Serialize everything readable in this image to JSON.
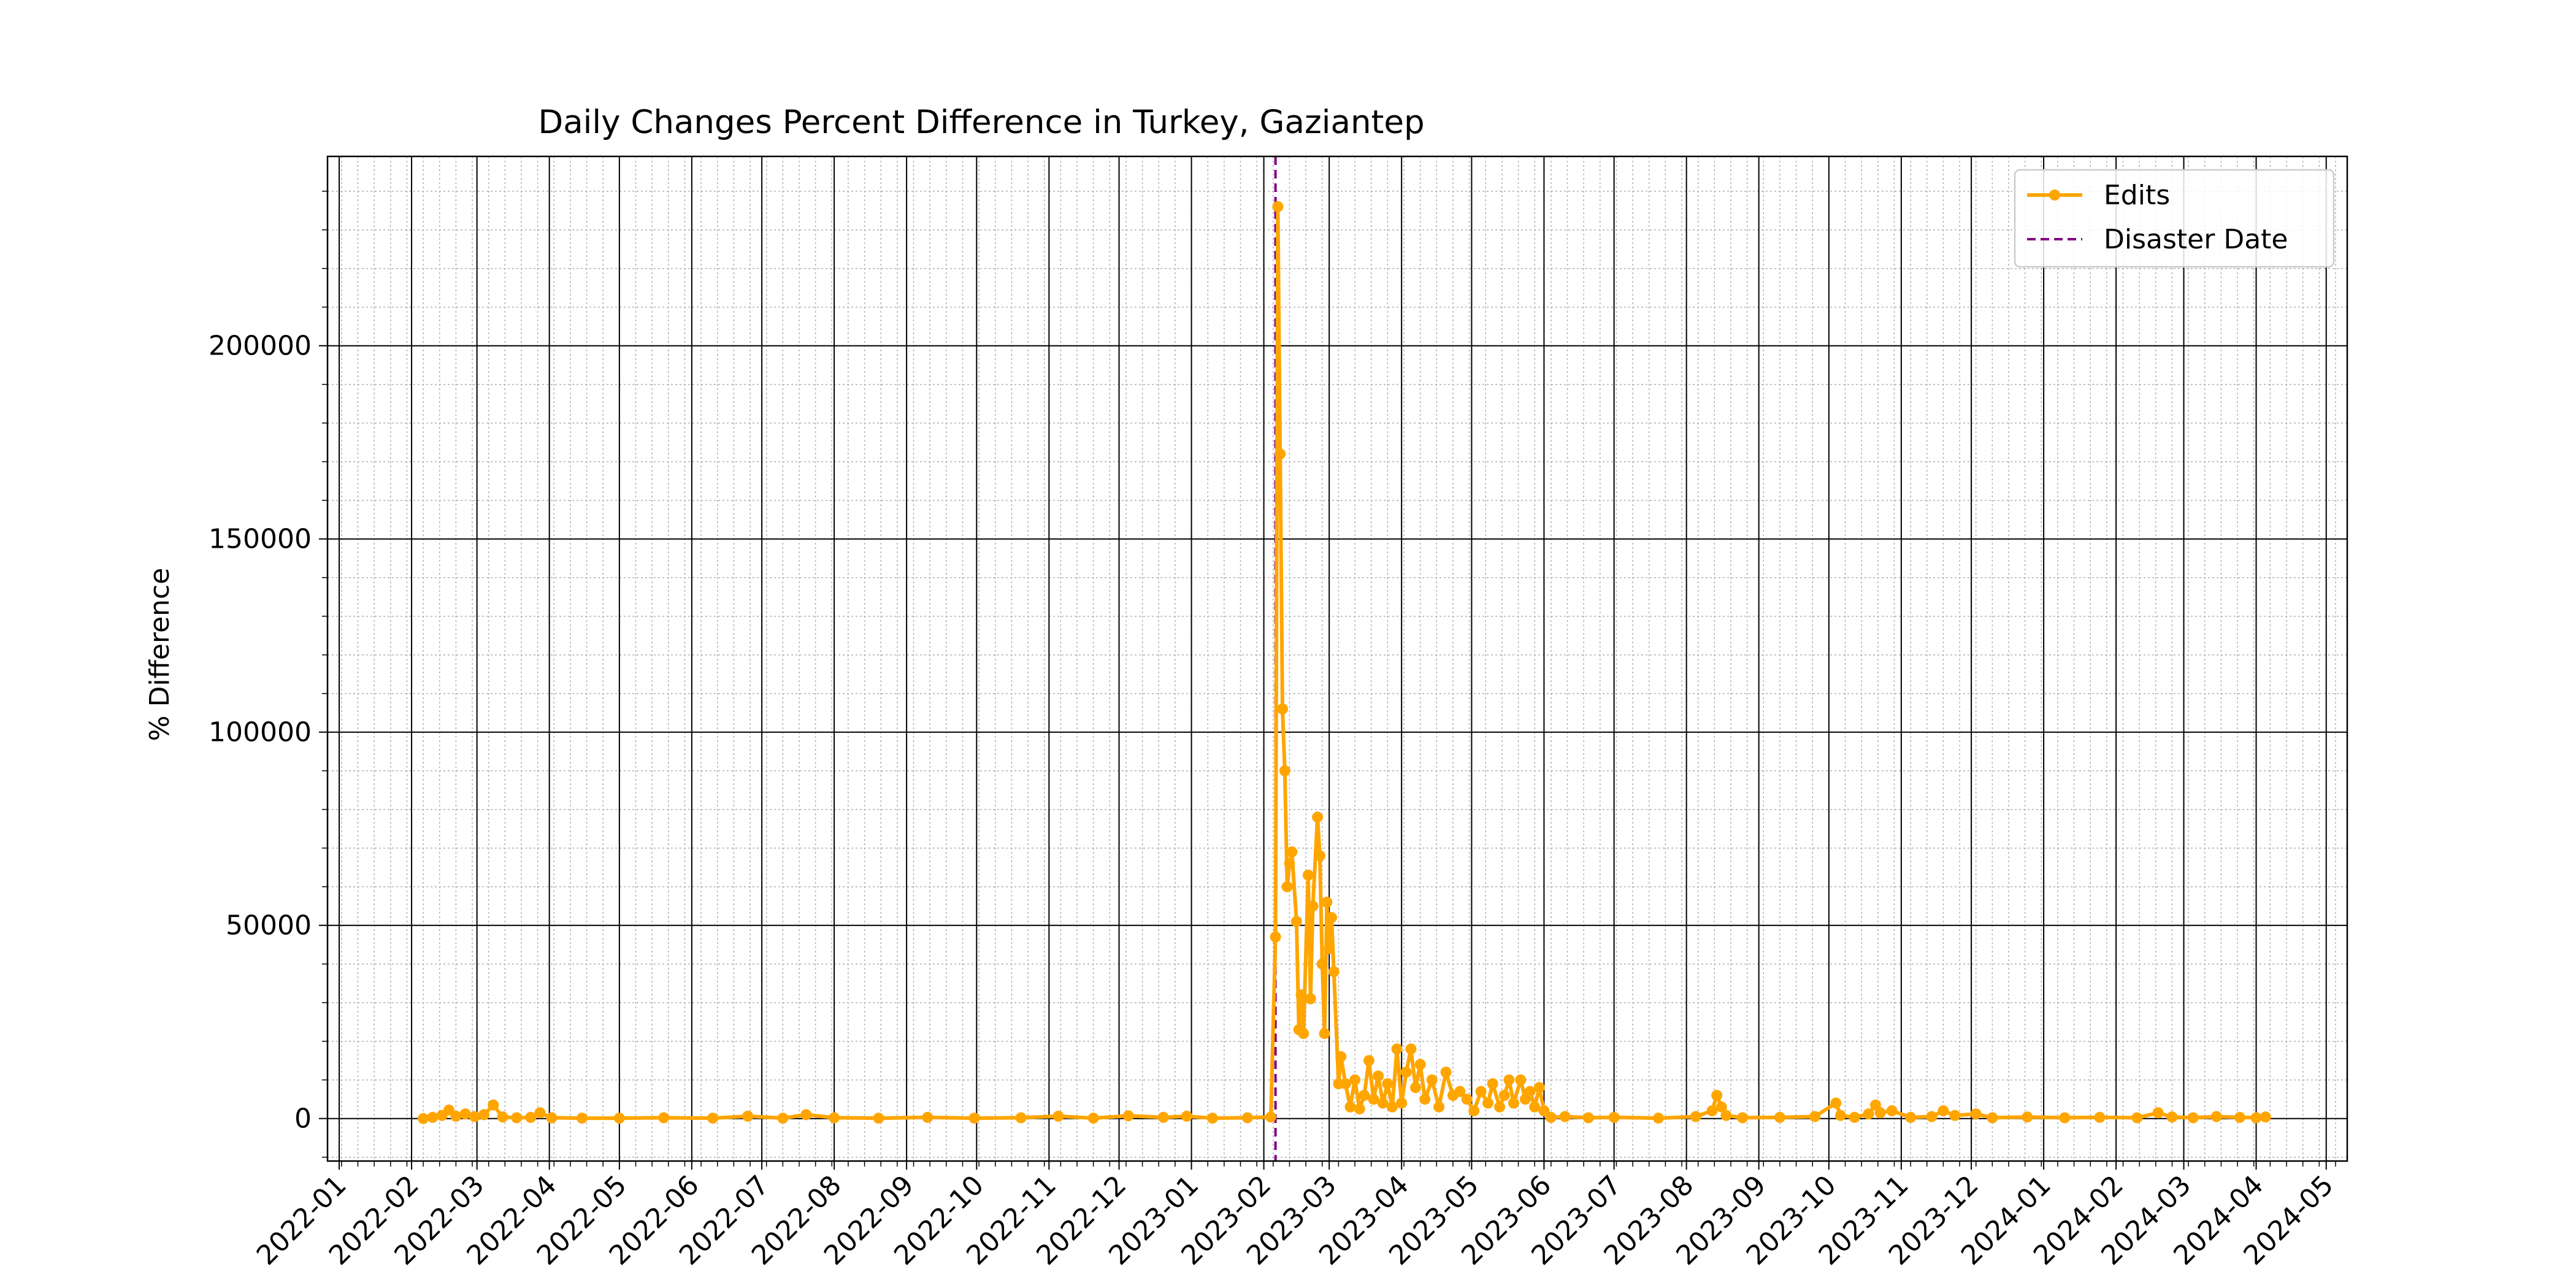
{
  "chart_data": {
    "type": "line",
    "title": "Daily Changes Percent Difference in Turkey, Gaziantep",
    "xlabel": "",
    "ylabel": "% Difference",
    "xlim": [
      "2021-12-27",
      "2024-05-10"
    ],
    "ylim": [
      -11000,
      249000
    ],
    "y_ticks": [
      0,
      50000,
      100000,
      150000,
      200000
    ],
    "y_tick_labels": [
      "0",
      "50000",
      "100000",
      "150000",
      "200000"
    ],
    "x_ticks": [
      "2022-01-01",
      "2022-02-01",
      "2022-03-01",
      "2022-04-01",
      "2022-05-01",
      "2022-06-01",
      "2022-07-01",
      "2022-08-01",
      "2022-09-01",
      "2022-10-01",
      "2022-11-01",
      "2022-12-01",
      "2023-01-01",
      "2023-02-01",
      "2023-03-01",
      "2023-04-01",
      "2023-05-01",
      "2023-06-01",
      "2023-07-01",
      "2023-08-01",
      "2023-09-01",
      "2023-10-01",
      "2023-11-01",
      "2023-12-01",
      "2024-01-01",
      "2024-02-01",
      "2024-03-01",
      "2024-04-01",
      "2024-05-01"
    ],
    "x_tick_labels": [
      "2022-01",
      "2022-02",
      "2022-03",
      "2022-04",
      "2022-05",
      "2022-06",
      "2022-07",
      "2022-08",
      "2022-09",
      "2022-10",
      "2022-11",
      "2022-12",
      "2023-01",
      "2023-02",
      "2023-03",
      "2023-04",
      "2023-05",
      "2023-06",
      "2023-07",
      "2023-08",
      "2023-09",
      "2023-10",
      "2023-11",
      "2023-12",
      "2024-01",
      "2024-02",
      "2024-03",
      "2024-04",
      "2024-05"
    ],
    "grid": true,
    "minor_grid": true,
    "legend_position": "top-right",
    "series": [
      {
        "name": "Edits",
        "color": "#FFA500",
        "marker": "circle",
        "points": [
          [
            "2022-02-06",
            0
          ],
          [
            "2022-02-10",
            300
          ],
          [
            "2022-02-14",
            800
          ],
          [
            "2022-02-17",
            2200
          ],
          [
            "2022-02-20",
            600
          ],
          [
            "2022-02-24",
            1200
          ],
          [
            "2022-02-28",
            500
          ],
          [
            "2022-03-04",
            1000
          ],
          [
            "2022-03-08",
            3500
          ],
          [
            "2022-03-12",
            400
          ],
          [
            "2022-03-18",
            200
          ],
          [
            "2022-03-24",
            300
          ],
          [
            "2022-03-28",
            1500
          ],
          [
            "2022-04-02",
            200
          ],
          [
            "2022-04-15",
            100
          ],
          [
            "2022-05-01",
            100
          ],
          [
            "2022-05-20",
            200
          ],
          [
            "2022-06-10",
            100
          ],
          [
            "2022-06-25",
            600
          ],
          [
            "2022-07-10",
            100
          ],
          [
            "2022-07-20",
            1000
          ],
          [
            "2022-08-01",
            200
          ],
          [
            "2022-08-20",
            100
          ],
          [
            "2022-09-10",
            300
          ],
          [
            "2022-09-30",
            100
          ],
          [
            "2022-10-20",
            200
          ],
          [
            "2022-11-05",
            600
          ],
          [
            "2022-11-20",
            100
          ],
          [
            "2022-12-05",
            700
          ],
          [
            "2022-12-20",
            300
          ],
          [
            "2022-12-30",
            600
          ],
          [
            "2023-01-10",
            100
          ],
          [
            "2023-01-25",
            200
          ],
          [
            "2023-02-04",
            400
          ],
          [
            "2023-02-06",
            47000
          ],
          [
            "2023-02-07",
            236000
          ],
          [
            "2023-02-08",
            172000
          ],
          [
            "2023-02-09",
            106000
          ],
          [
            "2023-02-10",
            90000
          ],
          [
            "2023-02-11",
            60000
          ],
          [
            "2023-02-12",
            66000
          ],
          [
            "2023-02-13",
            69000
          ],
          [
            "2023-02-15",
            51000
          ],
          [
            "2023-02-16",
            23000
          ],
          [
            "2023-02-17",
            32000
          ],
          [
            "2023-02-18",
            22000
          ],
          [
            "2023-02-20",
            63000
          ],
          [
            "2023-02-21",
            31000
          ],
          [
            "2023-02-22",
            55000
          ],
          [
            "2023-02-24",
            78000
          ],
          [
            "2023-02-25",
            68000
          ],
          [
            "2023-02-26",
            40000
          ],
          [
            "2023-02-27",
            22000
          ],
          [
            "2023-02-28",
            56000
          ],
          [
            "2023-03-01",
            44000
          ],
          [
            "2023-03-02",
            52000
          ],
          [
            "2023-03-03",
            38000
          ],
          [
            "2023-03-05",
            9000
          ],
          [
            "2023-03-06",
            16000
          ],
          [
            "2023-03-08",
            9000
          ],
          [
            "2023-03-10",
            3000
          ],
          [
            "2023-03-12",
            10000
          ],
          [
            "2023-03-14",
            2500
          ],
          [
            "2023-03-16",
            6000
          ],
          [
            "2023-03-18",
            15000
          ],
          [
            "2023-03-20",
            5000
          ],
          [
            "2023-03-22",
            11000
          ],
          [
            "2023-03-24",
            4000
          ],
          [
            "2023-03-26",
            9000
          ],
          [
            "2023-03-28",
            3000
          ],
          [
            "2023-03-30",
            18000
          ],
          [
            "2023-04-01",
            4000
          ],
          [
            "2023-04-03",
            12000
          ],
          [
            "2023-04-05",
            18000
          ],
          [
            "2023-04-07",
            8000
          ],
          [
            "2023-04-09",
            14000
          ],
          [
            "2023-04-11",
            5000
          ],
          [
            "2023-04-14",
            10000
          ],
          [
            "2023-04-17",
            3000
          ],
          [
            "2023-04-20",
            12000
          ],
          [
            "2023-04-23",
            6000
          ],
          [
            "2023-04-26",
            7000
          ],
          [
            "2023-04-29",
            5000
          ],
          [
            "2023-05-02",
            2000
          ],
          [
            "2023-05-05",
            7000
          ],
          [
            "2023-05-08",
            4000
          ],
          [
            "2023-05-10",
            9000
          ],
          [
            "2023-05-13",
            3000
          ],
          [
            "2023-05-15",
            6000
          ],
          [
            "2023-05-17",
            10000
          ],
          [
            "2023-05-19",
            4000
          ],
          [
            "2023-05-22",
            10000
          ],
          [
            "2023-05-24",
            5000
          ],
          [
            "2023-05-26",
            7000
          ],
          [
            "2023-05-28",
            3000
          ],
          [
            "2023-05-30",
            8000
          ],
          [
            "2023-06-01",
            2000
          ],
          [
            "2023-06-04",
            300
          ],
          [
            "2023-06-10",
            500
          ],
          [
            "2023-06-20",
            200
          ],
          [
            "2023-07-01",
            300
          ],
          [
            "2023-07-20",
            100
          ],
          [
            "2023-08-05",
            500
          ],
          [
            "2023-08-12",
            2000
          ],
          [
            "2023-08-14",
            6000
          ],
          [
            "2023-08-16",
            3000
          ],
          [
            "2023-08-18",
            800
          ],
          [
            "2023-08-25",
            200
          ],
          [
            "2023-09-10",
            300
          ],
          [
            "2023-09-25",
            500
          ],
          [
            "2023-10-04",
            4000
          ],
          [
            "2023-10-06",
            800
          ],
          [
            "2023-10-12",
            300
          ],
          [
            "2023-10-18",
            1200
          ],
          [
            "2023-10-21",
            3500
          ],
          [
            "2023-10-23",
            1500
          ],
          [
            "2023-10-28",
            2000
          ],
          [
            "2023-11-05",
            300
          ],
          [
            "2023-11-14",
            500
          ],
          [
            "2023-11-19",
            2000
          ],
          [
            "2023-11-24",
            800
          ],
          [
            "2023-12-03",
            1200
          ],
          [
            "2023-12-10",
            200
          ],
          [
            "2023-12-25",
            400
          ],
          [
            "2024-01-10",
            200
          ],
          [
            "2024-01-25",
            300
          ],
          [
            "2024-02-10",
            200
          ],
          [
            "2024-02-19",
            1500
          ],
          [
            "2024-02-25",
            400
          ],
          [
            "2024-03-05",
            200
          ],
          [
            "2024-03-15",
            500
          ],
          [
            "2024-03-25",
            300
          ],
          [
            "2024-04-01",
            200
          ],
          [
            "2024-04-05",
            400
          ]
        ]
      },
      {
        "name": "Disaster Date",
        "color": "#800080",
        "style": "dashed",
        "x": "2023-02-06"
      }
    ]
  }
}
